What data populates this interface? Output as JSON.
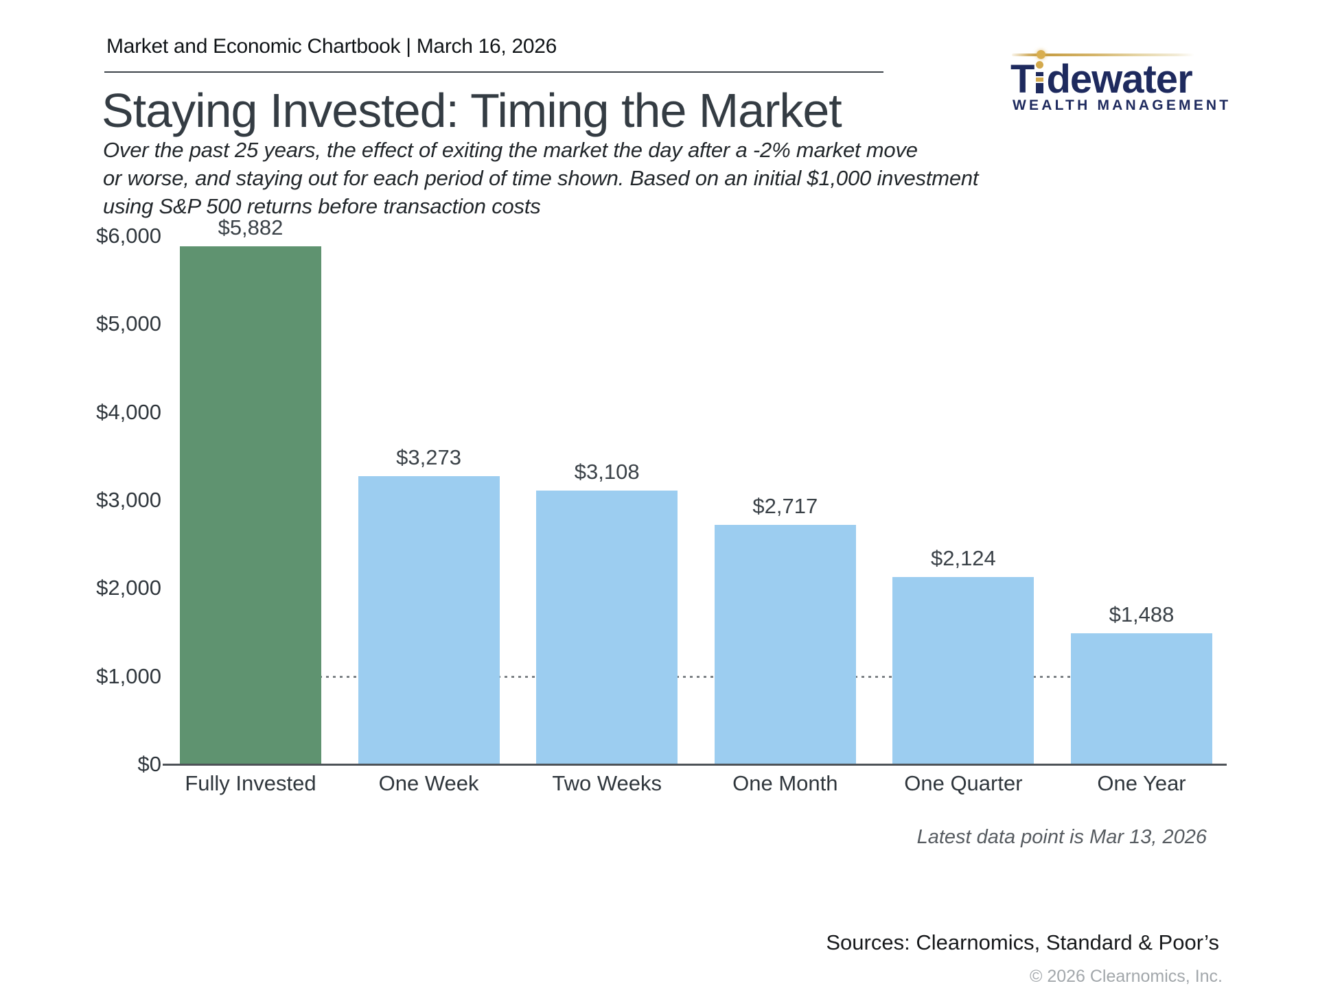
{
  "header": {
    "kicker": "Market and Economic Chartbook | March 16, 2026"
  },
  "logo": {
    "brand_prefix": "T",
    "brand_suffix": "dewater",
    "tagline": "WEALTH MANAGEMENT",
    "navy": "#1e2a5e",
    "gold": "#d3a94c"
  },
  "title": "Staying Invested: Timing the Market",
  "subtitle": "Over the past 25 years, the effect of exiting the market the day after a -2% market move\nor worse, and staying out for each period of time shown. Based on an initial $1,000 investment\nusing S&P 500 returns before transaction costs",
  "chart_data": {
    "type": "bar",
    "title": "Staying Invested: Timing the Market",
    "categories": [
      "Fully Invested",
      "One Week",
      "Two Weeks",
      "One Month",
      "One Quarter",
      "One Year"
    ],
    "values": [
      5882,
      3273,
      3108,
      2717,
      2124,
      1488
    ],
    "value_labels": [
      "$5,882",
      "$3,273",
      "$3,108",
      "$2,717",
      "$2,124",
      "$1,488"
    ],
    "bar_colors": [
      "#5f9370",
      "#9ccdf0",
      "#9ccdf0",
      "#9ccdf0",
      "#9ccdf0",
      "#9ccdf0"
    ],
    "highlight_color": "#5f9370",
    "series_color": "#9ccdf0",
    "xlabel": "",
    "ylabel": "",
    "ylim": [
      0,
      6000
    ],
    "ytick_labels": [
      "$0",
      "$1,000",
      "$2,000",
      "$3,000",
      "$4,000",
      "$5,000",
      "$6,000"
    ],
    "reference_line_value": 1000,
    "grid": false,
    "legend": false
  },
  "footnotes": {
    "latest": "Latest data point is Mar 13, 2026",
    "sources": "Sources: Clearnomics, Standard & Poor’s",
    "copyright": "© 2026 Clearnomics, Inc."
  }
}
